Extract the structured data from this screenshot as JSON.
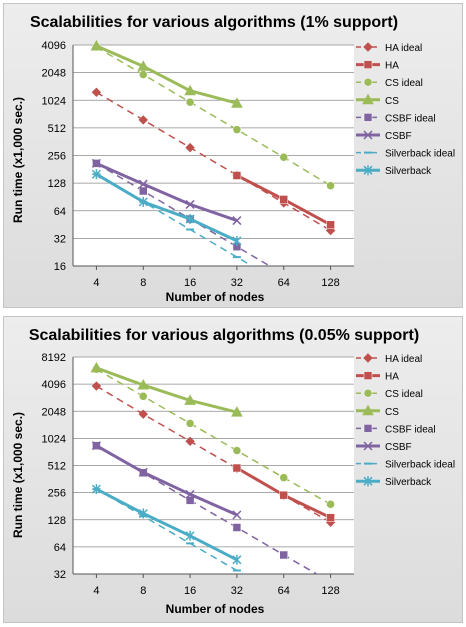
{
  "chart_data": [
    {
      "type": "line",
      "title": "Scalabilities for various algorithms (1% support)",
      "xlabel": "Number of nodes",
      "ylabel": "Run time (x1,000 sec.)",
      "log_scale": {
        "x": "base2",
        "y": "base2"
      },
      "categories": [
        "4",
        "8",
        "16",
        "32",
        "64",
        "128"
      ],
      "y_ticks": [
        16,
        32,
        64,
        128,
        256,
        512,
        1024,
        2048,
        4096
      ],
      "ylim": [
        16,
        4096
      ],
      "grid": true,
      "legend_position": "right",
      "series": [
        {
          "name": "HA ideal",
          "color": "#c0504d",
          "marker": "diamond",
          "dashed": true,
          "x": [
            4,
            8,
            16,
            32,
            64,
            128
          ],
          "values": [
            1250,
            625,
            312,
            156,
            78,
            39
          ]
        },
        {
          "name": "HA",
          "color": "#c0504d",
          "marker": "square",
          "dashed": false,
          "x": [
            32,
            64,
            128
          ],
          "values": [
            155,
            85,
            45
          ]
        },
        {
          "name": "CS ideal",
          "color": "#9bbb59",
          "marker": "circle",
          "dashed": true,
          "x": [
            4,
            8,
            16,
            32,
            64,
            128
          ],
          "values": [
            3900,
            1950,
            975,
            490,
            245,
            120
          ]
        },
        {
          "name": "CS",
          "color": "#9bbb59",
          "marker": "triangle",
          "dashed": false,
          "x": [
            4,
            8,
            16,
            32
          ],
          "values": [
            4000,
            2400,
            1300,
            950
          ]
        },
        {
          "name": "CSBF ideal",
          "color": "#8064a2",
          "marker": "square",
          "dashed": true,
          "x": [
            4,
            8,
            16,
            32,
            64,
            128
          ],
          "values": [
            210,
            105,
            52,
            26,
            13,
            6.5
          ]
        },
        {
          "name": "CSBF",
          "color": "#8064a2",
          "marker": "x",
          "dashed": false,
          "x": [
            4,
            8,
            16,
            32
          ],
          "values": [
            210,
            125,
            75,
            50
          ]
        },
        {
          "name": "Silverback ideal",
          "color": "#4bacc6",
          "marker": "dash",
          "dashed": true,
          "x": [
            4,
            8,
            16,
            32,
            64,
            128
          ],
          "values": [
            160,
            80,
            40,
            20,
            10,
            5
          ]
        },
        {
          "name": "Silverback",
          "color": "#4bacc6",
          "marker": "asterisk",
          "dashed": false,
          "x": [
            4,
            8,
            16,
            32
          ],
          "values": [
            160,
            80,
            52,
            30
          ]
        }
      ]
    },
    {
      "type": "line",
      "title": "Scalabilities for various algorithms (0.05% support)",
      "xlabel": "Number of nodes",
      "ylabel": "Run time (x1,000 sec.)",
      "log_scale": {
        "x": "base2",
        "y": "base2"
      },
      "categories": [
        "4",
        "8",
        "16",
        "32",
        "64",
        "128"
      ],
      "y_ticks": [
        32,
        64,
        128,
        256,
        512,
        1024,
        2048,
        4096,
        8192
      ],
      "ylim": [
        32,
        8192
      ],
      "grid": true,
      "legend_position": "right",
      "series": [
        {
          "name": "HA ideal",
          "color": "#c0504d",
          "marker": "diamond",
          "dashed": true,
          "x": [
            4,
            8,
            16,
            32,
            64,
            128
          ],
          "values": [
            3900,
            1900,
            950,
            475,
            238,
            120
          ]
        },
        {
          "name": "HA",
          "color": "#c0504d",
          "marker": "square",
          "dashed": false,
          "x": [
            32,
            64,
            128
          ],
          "values": [
            480,
            240,
            135
          ]
        },
        {
          "name": "CS ideal",
          "color": "#9bbb59",
          "marker": "circle",
          "dashed": true,
          "x": [
            4,
            8,
            16,
            32,
            64,
            128
          ],
          "values": [
            6000,
            3000,
            1500,
            750,
            375,
            190
          ]
        },
        {
          "name": "CS",
          "color": "#9bbb59",
          "marker": "triangle",
          "dashed": false,
          "x": [
            4,
            8,
            16,
            32
          ],
          "values": [
            6200,
            4000,
            2700,
            2000
          ]
        },
        {
          "name": "CSBF ideal",
          "color": "#8064a2",
          "marker": "square",
          "dashed": true,
          "x": [
            4,
            8,
            16,
            32,
            64,
            128
          ],
          "values": [
            850,
            425,
            210,
            105,
            52,
            26
          ]
        },
        {
          "name": "CSBF",
          "color": "#8064a2",
          "marker": "x",
          "dashed": false,
          "x": [
            4,
            8,
            16,
            32
          ],
          "values": [
            850,
            430,
            245,
            145
          ]
        },
        {
          "name": "Silverback ideal",
          "color": "#4bacc6",
          "marker": "dash",
          "dashed": true,
          "x": [
            4,
            8,
            16,
            32,
            64,
            128
          ],
          "values": [
            280,
            140,
            70,
            35,
            17.5,
            8.75
          ]
        },
        {
          "name": "Silverback",
          "color": "#4bacc6",
          "marker": "asterisk",
          "dashed": false,
          "x": [
            4,
            8,
            16,
            32
          ],
          "values": [
            280,
            150,
            85,
            46
          ]
        }
      ]
    }
  ]
}
